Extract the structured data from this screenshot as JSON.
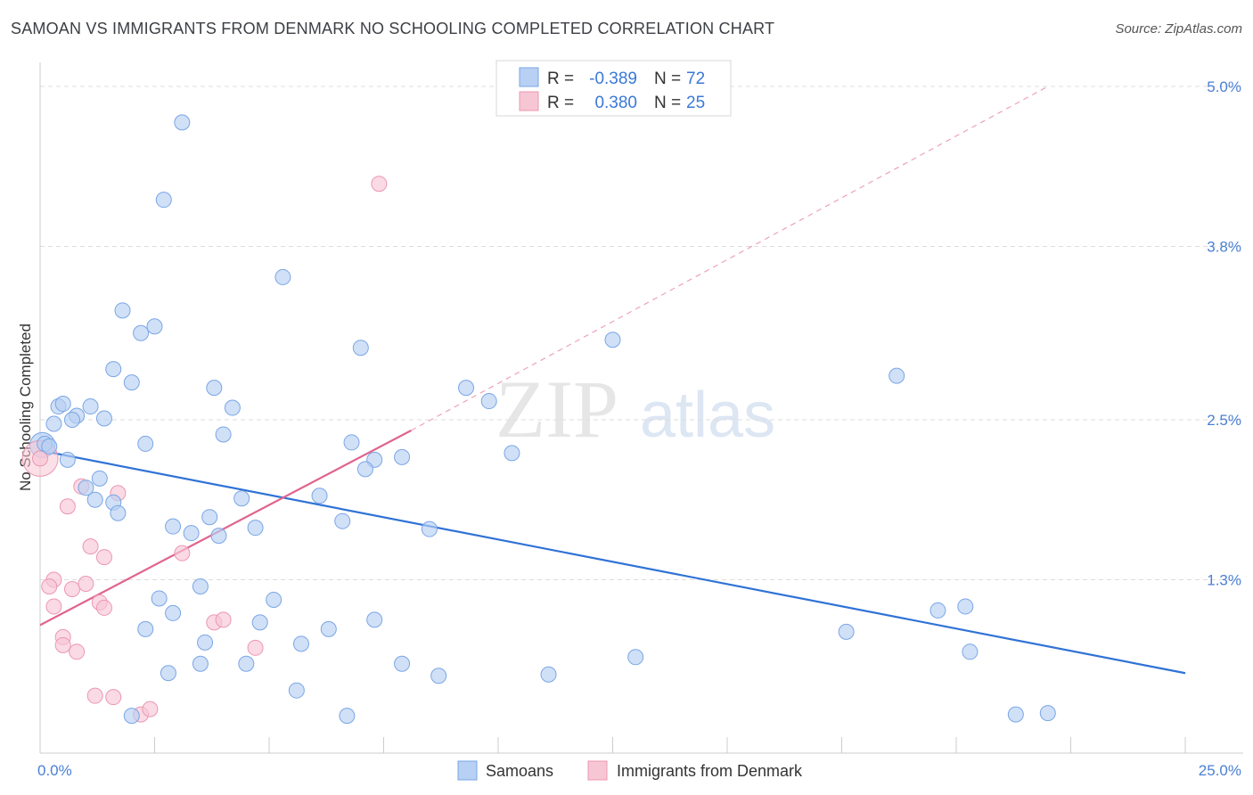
{
  "title": "SAMOAN VS IMMIGRANTS FROM DENMARK NO SCHOOLING COMPLETED CORRELATION CHART",
  "source": "Source: ZipAtlas.com",
  "watermark": {
    "zip": "ZIP",
    "atlas": "atlas"
  },
  "colors": {
    "blue_fill": "#b7d0f3",
    "blue_stroke": "#7aa6e6",
    "blue_line": "#2f72d6",
    "pink_fill": "#f7c6d5",
    "pink_stroke": "#ec97b2",
    "pink_line": "#e0648e",
    "grid": "#dddddd",
    "tick_text": "#4a7fd4"
  },
  "legend_top": {
    "rows": [
      {
        "r_label": "R =",
        "r_value": "-0.389",
        "n_label": "N =",
        "n_value": "72",
        "series": "blue"
      },
      {
        "r_label": "R =",
        "r_value": "0.380",
        "n_label": "N =",
        "n_value": "25",
        "series": "pink"
      }
    ]
  },
  "legend_bottom": [
    {
      "label": "Samoans",
      "series": "blue"
    },
    {
      "label": "Immigrants from Denmark",
      "series": "pink"
    }
  ],
  "chart_data": {
    "type": "scatter",
    "title": "SAMOAN VS IMMIGRANTS FROM DENMARK NO SCHOOLING COMPLETED CORRELATION CHART",
    "xlabel": "",
    "ylabel": "No Schooling Completed",
    "xlim": [
      0,
      25
    ],
    "ylim": [
      0,
      5.0
    ],
    "x_tick_labels": [
      {
        "value": 0,
        "label": "0.0%"
      },
      {
        "value": 25,
        "label": "25.0%"
      }
    ],
    "y_tick_labels": [
      {
        "value": 1.3,
        "label": "1.3%"
      },
      {
        "value": 2.5,
        "label": "2.5%"
      },
      {
        "value": 3.8,
        "label": "3.8%"
      },
      {
        "value": 5.0,
        "label": "5.0%"
      }
    ],
    "y_gridlines": [
      1.3,
      2.5,
      3.8,
      5.0
    ],
    "series": [
      {
        "name": "Samoans",
        "color": "blue",
        "r": -0.389,
        "n": 72,
        "trend": {
          "x": [
            0,
            25
          ],
          "y": [
            2.27,
            0.6
          ]
        },
        "points": [
          [
            3.1,
            4.73
          ],
          [
            2.7,
            4.15
          ],
          [
            5.3,
            3.57
          ],
          [
            1.8,
            3.32
          ],
          [
            2.5,
            3.2
          ],
          [
            2.2,
            3.15
          ],
          [
            7.0,
            3.04
          ],
          [
            12.5,
            3.1
          ],
          [
            1.6,
            2.88
          ],
          [
            2.0,
            2.78
          ],
          [
            3.8,
            2.74
          ],
          [
            9.3,
            2.74
          ],
          [
            0.4,
            2.6
          ],
          [
            0.5,
            2.62
          ],
          [
            1.1,
            2.6
          ],
          [
            0.8,
            2.53
          ],
          [
            1.4,
            2.51
          ],
          [
            0.3,
            2.47
          ],
          [
            0.7,
            2.5
          ],
          [
            4.2,
            2.59
          ],
          [
            18.7,
            2.83
          ],
          [
            9.8,
            2.64
          ],
          [
            4.0,
            2.39
          ],
          [
            0.1,
            2.32
          ],
          [
            0.2,
            2.3
          ],
          [
            2.3,
            2.32
          ],
          [
            6.8,
            2.33
          ],
          [
            0.6,
            2.2
          ],
          [
            7.3,
            2.2
          ],
          [
            7.9,
            2.22
          ],
          [
            10.3,
            2.25
          ],
          [
            1.3,
            2.06
          ],
          [
            7.1,
            2.13
          ],
          [
            1.0,
            1.99
          ],
          [
            1.2,
            1.9
          ],
          [
            1.6,
            1.88
          ],
          [
            1.7,
            1.8
          ],
          [
            4.4,
            1.91
          ],
          [
            6.1,
            1.93
          ],
          [
            3.7,
            1.77
          ],
          [
            6.6,
            1.74
          ],
          [
            8.5,
            1.68
          ],
          [
            2.9,
            1.7
          ],
          [
            3.3,
            1.65
          ],
          [
            3.9,
            1.63
          ],
          [
            4.7,
            1.69
          ],
          [
            3.5,
            1.25
          ],
          [
            2.6,
            1.16
          ],
          [
            5.1,
            1.15
          ],
          [
            2.9,
            1.05
          ],
          [
            7.3,
            1.0
          ],
          [
            19.6,
            1.07
          ],
          [
            20.2,
            1.1
          ],
          [
            2.3,
            0.93
          ],
          [
            4.8,
            0.98
          ],
          [
            3.6,
            0.83
          ],
          [
            5.7,
            0.82
          ],
          [
            6.3,
            0.93
          ],
          [
            17.6,
            0.91
          ],
          [
            13.0,
            0.72
          ],
          [
            20.3,
            0.76
          ],
          [
            2.8,
            0.6
          ],
          [
            3.5,
            0.67
          ],
          [
            4.5,
            0.67
          ],
          [
            7.9,
            0.67
          ],
          [
            8.7,
            0.58
          ],
          [
            11.1,
            0.59
          ],
          [
            5.6,
            0.47
          ],
          [
            21.3,
            0.29
          ],
          [
            22.0,
            0.3
          ],
          [
            2.0,
            0.28
          ],
          [
            6.7,
            0.28
          ]
        ]
      },
      {
        "name": "Immigrants from Denmark",
        "color": "pink",
        "r": 0.38,
        "n": 25,
        "trend": {
          "x": [
            0,
            8.1
          ],
          "y": [
            0.96,
            2.42
          ]
        },
        "trend_extended": {
          "x": [
            8.1,
            22.0
          ],
          "y": [
            2.42,
            5.0
          ]
        },
        "points": [
          [
            7.4,
            4.27
          ],
          [
            0.0,
            2.21
          ],
          [
            0.9,
            2.0
          ],
          [
            1.7,
            1.95
          ],
          [
            0.6,
            1.85
          ],
          [
            1.1,
            1.55
          ],
          [
            1.4,
            1.47
          ],
          [
            3.1,
            1.5
          ],
          [
            0.3,
            1.3
          ],
          [
            0.2,
            1.25
          ],
          [
            0.7,
            1.23
          ],
          [
            1.0,
            1.27
          ],
          [
            1.3,
            1.13
          ],
          [
            1.4,
            1.09
          ],
          [
            0.3,
            1.1
          ],
          [
            3.8,
            0.98
          ],
          [
            4.0,
            1.0
          ],
          [
            0.5,
            0.87
          ],
          [
            0.5,
            0.81
          ],
          [
            0.8,
            0.76
          ],
          [
            4.7,
            0.79
          ],
          [
            1.2,
            0.43
          ],
          [
            1.6,
            0.42
          ],
          [
            2.2,
            0.29
          ],
          [
            2.4,
            0.33
          ]
        ]
      }
    ]
  }
}
